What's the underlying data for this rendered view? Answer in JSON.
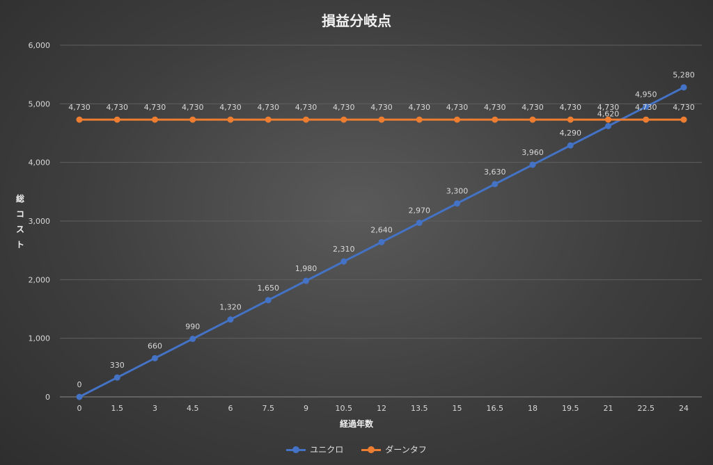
{
  "chart_data": {
    "type": "line",
    "title": "損益分岐点",
    "xlabel": "経過年数",
    "ylabel": "総コスト",
    "ylim": [
      0,
      6000
    ],
    "yticks": [
      "0",
      "1,000",
      "2,000",
      "3,000",
      "4,000",
      "5,000",
      "6,000"
    ],
    "ytick_values": [
      0,
      1000,
      2000,
      3000,
      4000,
      5000,
      6000
    ],
    "categories": [
      "0",
      "1.5",
      "3",
      "4.5",
      "6",
      "7.5",
      "9",
      "10.5",
      "12",
      "13.5",
      "15",
      "16.5",
      "18",
      "19.5",
      "21",
      "22.5",
      "24"
    ],
    "grid": true,
    "legend_position": "bottom",
    "series": [
      {
        "name": "ユニクロ",
        "color": "#4472c4",
        "values": [
          0,
          330,
          660,
          990,
          1320,
          1650,
          1980,
          2310,
          2640,
          2970,
          3300,
          3630,
          3960,
          4290,
          4620,
          4950,
          5280
        ],
        "labels": [
          "0",
          "330",
          "660",
          "990",
          "1,320",
          "1,650",
          "1,980",
          "2,310",
          "2,640",
          "2,970",
          "3,300",
          "3,630",
          "3,960",
          "4,290",
          "4,620",
          "4,950",
          "5,280"
        ]
      },
      {
        "name": "ダーンタフ",
        "color": "#ed7d31",
        "values": [
          4730,
          4730,
          4730,
          4730,
          4730,
          4730,
          4730,
          4730,
          4730,
          4730,
          4730,
          4730,
          4730,
          4730,
          4730,
          4730,
          4730
        ],
        "labels": [
          "4,730",
          "4,730",
          "4,730",
          "4,730",
          "4,730",
          "4,730",
          "4,730",
          "4,730",
          "4,730",
          "4,730",
          "4,730",
          "4,730",
          "4,730",
          "4,730",
          "4,730",
          "4,730",
          "4,730"
        ]
      }
    ]
  }
}
